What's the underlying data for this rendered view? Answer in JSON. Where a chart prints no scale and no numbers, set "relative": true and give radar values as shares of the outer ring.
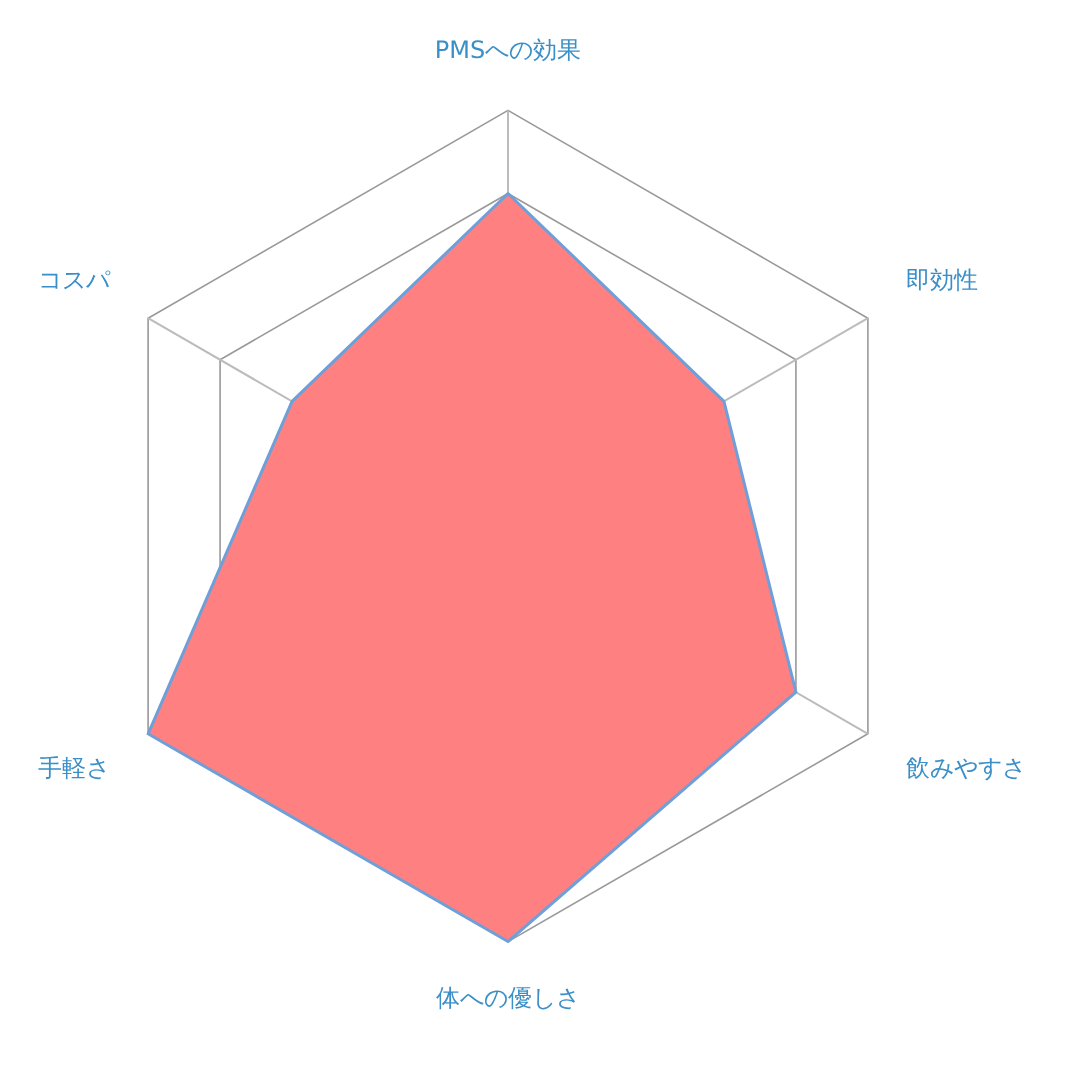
{
  "chart_data": {
    "type": "radar",
    "relative": true,
    "grid": true,
    "legend": false,
    "marker": "none",
    "categories": [
      "PMSへの効果",
      "即効性",
      "飲みやすさ",
      "体への優しさ",
      "手軽さ",
      "コスパ"
    ],
    "series": [
      {
        "color": "#ff8080",
        "values": [
          0.8,
          0.6,
          0.8,
          1,
          1,
          0.6
        ]
      }
    ]
  }
}
